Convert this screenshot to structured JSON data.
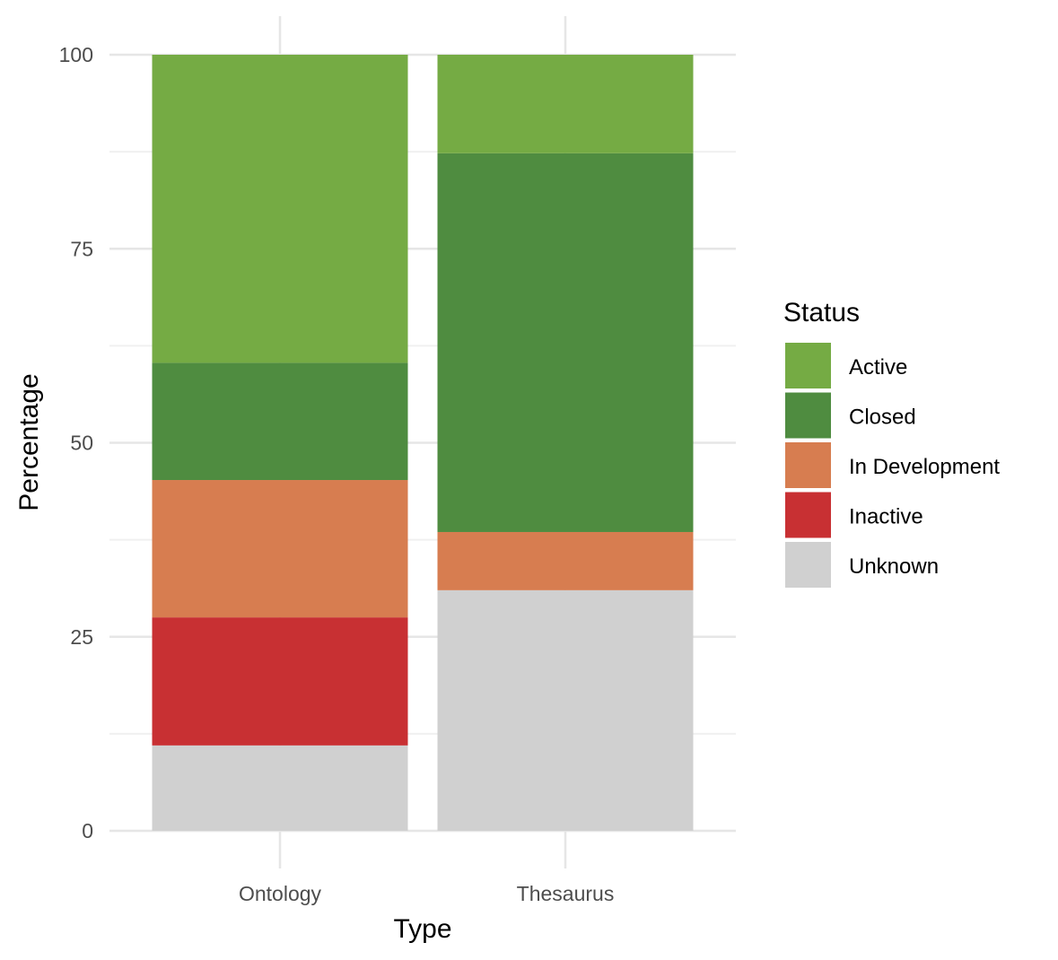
{
  "chart_data": {
    "type": "bar",
    "stacked": true,
    "categories": [
      "Ontology",
      "Thesaurus"
    ],
    "series": [
      {
        "name": "Unknown",
        "color": "#D0D0D0",
        "values": [
          11.0,
          31.0
        ]
      },
      {
        "name": "Inactive",
        "color": "#C83033",
        "values": [
          16.5,
          0
        ]
      },
      {
        "name": "In Development",
        "color": "#D77D50",
        "values": [
          17.7,
          7.5
        ]
      },
      {
        "name": "Closed",
        "color": "#4F8C40",
        "values": [
          15.1,
          48.8
        ]
      },
      {
        "name": "Active",
        "color": "#75AB44",
        "values": [
          39.7,
          12.7
        ]
      }
    ],
    "xlabel": "Type",
    "ylabel": "Percentage",
    "ylim": [
      0,
      100
    ],
    "yticks": [
      "0",
      "25",
      "50",
      "75",
      "100"
    ],
    "grid": true,
    "legend": {
      "title": "Status",
      "placement": "right",
      "order": [
        "Active",
        "Closed",
        "In Development",
        "Inactive",
        "Unknown"
      ]
    }
  }
}
